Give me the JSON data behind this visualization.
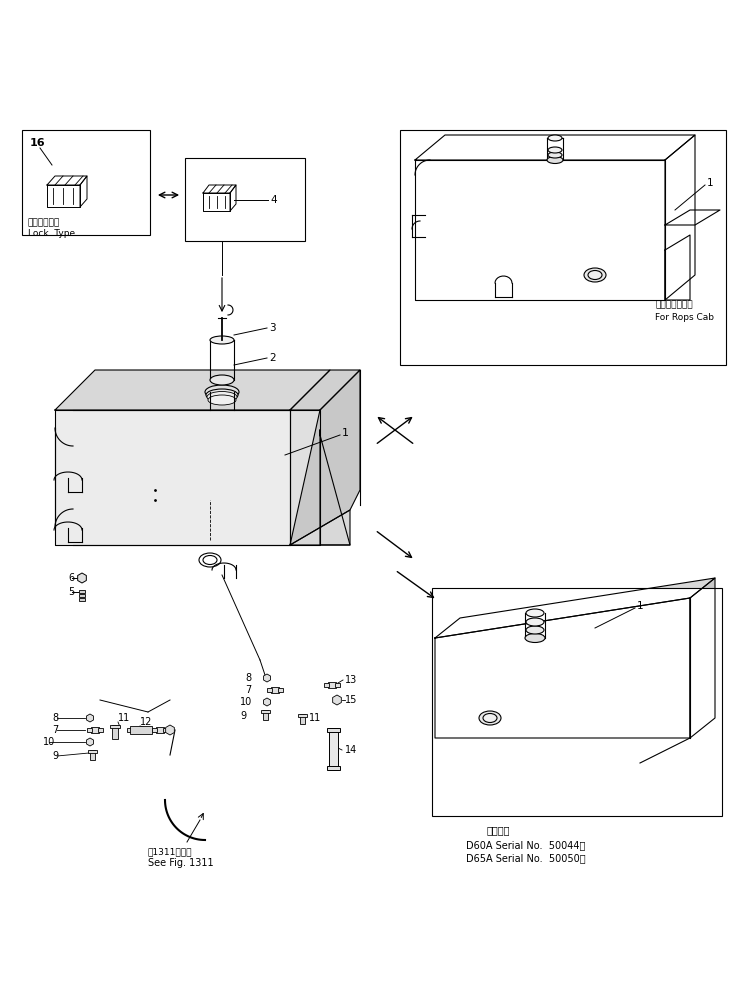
{
  "bg_color": "#ffffff",
  "line_color": "#000000",
  "fig_width": 7.36,
  "fig_height": 10.07,
  "texts": {
    "lock_type_jp": "ロックタイプ",
    "lock_type_en": "Lock  Type",
    "for_rops_jp": "ロプスキャブ用",
    "for_rops_en": "For Rops Cab",
    "see_fig_jp": "第1311図参照",
    "see_fig_en": "See Fig. 1311",
    "serial_jp": "適用号機",
    "serial1": "D60A Serial No.  50044～",
    "serial2": "D65A Serial No.  50050～"
  }
}
